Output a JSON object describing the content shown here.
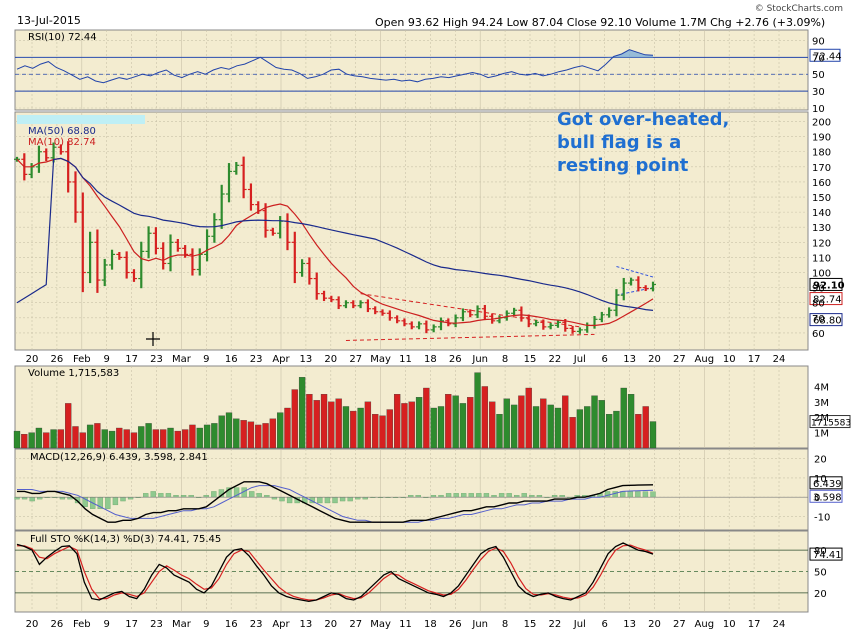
{
  "header": {
    "date": "13-Jul-2015",
    "quote": "Open 93.62  High 94.24  Low 87.04  Close 92.10  Volume 1.7M  Chg +2.76 (+3.09%)",
    "watermark": "© StockCharts.com"
  },
  "annotation": [
    "Got over-heated,",
    "bull flag is a",
    "resting point"
  ],
  "colors": {
    "up": "#2e8b2e",
    "down": "#d62020",
    "ma50": "#1a2a8c",
    "ma10": "#cc2020",
    "panel_bg": "#f3ecd0",
    "rsi": "#2244aa",
    "macd": "#000000",
    "signal": "#5560cc",
    "annotation": "#1f6fd1"
  },
  "x_labels": [
    "20",
    "26",
    "Feb",
    "9",
    "17",
    "23",
    "Mar",
    "9",
    "16",
    "23",
    "Apr",
    "13",
    "20",
    "27",
    "May",
    "11",
    "18",
    "26",
    "Jun",
    "8",
    "15",
    "22",
    "Jul",
    "6",
    "13",
    "20",
    "27",
    "Aug",
    "10",
    "17",
    "24"
  ],
  "chart_data": [
    {
      "type": "line",
      "name": "rsi",
      "title": "RSI(10) 72.44",
      "ticks": [
        "90",
        "70",
        "50",
        "30",
        "10"
      ],
      "current_label": "72.44",
      "ylim": [
        10,
        100
      ],
      "levels": [
        70,
        30
      ],
      "values": [
        56,
        60,
        57,
        62,
        65,
        58,
        54,
        49,
        44,
        47,
        42,
        40,
        43,
        46,
        44,
        47,
        50,
        48,
        52,
        55,
        49,
        46,
        50,
        53,
        50,
        55,
        58,
        56,
        60,
        62,
        66,
        70,
        64,
        58,
        56,
        55,
        51,
        45,
        47,
        50,
        55,
        56,
        50,
        48,
        47,
        45,
        44,
        43,
        44,
        42,
        43,
        41,
        44,
        45,
        47,
        46,
        48,
        50,
        52,
        50,
        46,
        48,
        51,
        53,
        50,
        49,
        51,
        48,
        50,
        53,
        55,
        58,
        60,
        57,
        54,
        62,
        71,
        74,
        79,
        76,
        73,
        72.44
      ]
    },
    {
      "type": "ohlc",
      "name": "price",
      "ticks": [
        "200",
        "190",
        "180",
        "170",
        "160",
        "150",
        "140",
        "130",
        "120",
        "110",
        "100",
        "90",
        "80",
        "70",
        "60"
      ],
      "ylim": [
        50,
        205
      ],
      "legend": [
        "MA(50) 68.80",
        "MA(10) 82.74"
      ],
      "last_labels": [
        "92.10",
        "82.74",
        "68.80"
      ],
      "close": [
        175,
        165,
        170,
        180,
        176,
        183,
        180,
        160,
        140,
        100,
        120,
        95,
        105,
        112,
        110,
        100,
        96,
        114,
        126,
        116,
        106,
        120,
        116,
        112,
        102,
        112,
        124,
        135,
        152,
        167,
        171,
        155,
        145,
        141,
        128,
        126,
        134,
        120,
        100,
        106,
        96,
        86,
        83,
        82,
        78,
        80,
        78,
        80,
        76,
        74,
        73,
        70,
        68,
        66,
        64,
        66,
        62,
        64,
        68,
        66,
        70,
        74,
        72,
        76,
        71,
        68,
        70,
        73,
        75,
        70,
        66,
        67,
        64,
        65,
        67,
        63,
        61,
        62,
        65,
        69,
        72,
        75,
        85,
        93,
        95,
        90,
        89.34,
        92.1
      ]
    },
    {
      "type": "bar",
      "name": "volume",
      "title": "Volume 1,715,583",
      "ticks": [
        "4M",
        "3M",
        "2M",
        "1M"
      ],
      "current_label": "1715583",
      "ylim": [
        0,
        5.2
      ],
      "values": [
        1.1,
        0.9,
        1.0,
        1.3,
        1.0,
        1.2,
        1.2,
        2.9,
        1.4,
        1.0,
        1.5,
        1.6,
        1.2,
        1.1,
        1.3,
        1.2,
        1.0,
        1.4,
        1.6,
        1.2,
        1.2,
        1.3,
        1.1,
        1.2,
        1.5,
        1.3,
        1.5,
        1.6,
        2.1,
        2.3,
        1.9,
        1.8,
        1.7,
        1.5,
        1.6,
        1.9,
        2.3,
        2.6,
        3.8,
        4.6,
        3.5,
        3.1,
        3.5,
        3.0,
        3.2,
        2.7,
        2.4,
        2.6,
        3.0,
        2.2,
        2.1,
        2.5,
        3.5,
        2.9,
        3.0,
        3.3,
        3.9,
        2.6,
        2.7,
        3.5,
        3.4,
        2.9,
        3.3,
        4.9,
        4.0,
        3.0,
        2.2,
        3.2,
        2.8,
        3.4,
        3.9,
        2.7,
        3.2,
        2.8,
        2.6,
        3.4,
        2.0,
        2.5,
        2.7,
        3.4,
        3.1,
        2.2,
        2.4,
        3.9,
        3.5,
        2.2,
        2.7,
        1.72
      ]
    },
    {
      "type": "line",
      "name": "macd",
      "title": "MACD(12,26,9) 6.439, 3.598, 2.841",
      "ticks": [
        "20",
        "10",
        "0",
        "-10"
      ],
      "current_labels": [
        "6.439",
        "3.598"
      ],
      "ylim": [
        -16,
        24
      ],
      "macd": [
        3,
        3,
        2,
        2,
        3,
        3,
        2,
        1,
        -2,
        -6,
        -9,
        -11,
        -13,
        -13,
        -12,
        -12,
        -11,
        -9,
        -8,
        -8,
        -7,
        -7,
        -6,
        -6,
        -6,
        -5,
        -2,
        1,
        4,
        6,
        8,
        8,
        8,
        7,
        5,
        3,
        1,
        -1,
        -3,
        -5,
        -7,
        -9,
        -11,
        -12,
        -13,
        -13,
        -13,
        -13,
        -13,
        -13,
        -13,
        -13,
        -12,
        -12,
        -12,
        -11,
        -10,
        -9,
        -8,
        -7,
        -7,
        -6,
        -5,
        -5,
        -4,
        -3,
        -3,
        -2,
        -2,
        -2,
        -2,
        -1,
        -1,
        -1,
        0,
        0,
        1,
        2,
        4,
        5,
        6,
        6.2,
        6.3,
        6.4,
        6.439
      ],
      "signal": [
        4,
        4,
        4,
        3,
        3,
        3,
        3,
        2,
        1,
        -1,
        -3,
        -5,
        -7,
        -9,
        -10,
        -11,
        -11,
        -11,
        -11,
        -10,
        -9,
        -8,
        -7,
        -7,
        -6,
        -6,
        -5,
        -3,
        -1,
        1,
        3,
        5,
        6,
        6,
        6,
        5,
        4,
        2,
        0,
        -2,
        -4,
        -6,
        -8,
        -10,
        -11,
        -12,
        -12,
        -13,
        -13,
        -13,
        -13,
        -13,
        -13,
        -13,
        -12,
        -12,
        -11,
        -11,
        -10,
        -9,
        -9,
        -8,
        -7,
        -6,
        -6,
        -5,
        -4,
        -4,
        -3,
        -3,
        -2,
        -2,
        -2,
        -1,
        -1,
        -1,
        0,
        0,
        1,
        2,
        3,
        3.2,
        3.4,
        3.5,
        3.598
      ],
      "histogram": [
        -1,
        -1,
        -2,
        -1,
        0,
        0,
        -1,
        -1,
        -3,
        -5,
        -6,
        -6,
        -6,
        -4,
        -2,
        -1,
        0,
        2,
        3,
        2,
        2,
        1,
        1,
        1,
        0,
        1,
        3,
        4,
        5,
        5,
        5,
        3,
        2,
        1,
        -1,
        -2,
        -3,
        -3,
        -3,
        -3,
        -3,
        -3,
        -3,
        -2,
        -2,
        -1,
        -1,
        0,
        0,
        0,
        0,
        0,
        1,
        1,
        0,
        1,
        1,
        2,
        2,
        2,
        2,
        2,
        2,
        1,
        2,
        2,
        1,
        2,
        1,
        1,
        0,
        1,
        1,
        0,
        1,
        1,
        1,
        2,
        3,
        3,
        3,
        3,
        3,
        2.9,
        2.841
      ]
    },
    {
      "type": "line",
      "name": "stochastic",
      "title": "Full STO %K(14,3) %D(3) 74.41, 75.45",
      "ticks": [
        "80",
        "50",
        "20"
      ],
      "current_label": "74.41",
      "ylim": [
        -4,
        104
      ],
      "levels": [
        80,
        50,
        20
      ],
      "k": [
        88,
        85,
        80,
        60,
        70,
        78,
        85,
        86,
        75,
        35,
        12,
        10,
        15,
        20,
        22,
        15,
        12,
        25,
        45,
        60,
        55,
        45,
        40,
        35,
        25,
        20,
        30,
        50,
        70,
        80,
        82,
        72,
        58,
        45,
        30,
        20,
        15,
        12,
        10,
        8,
        10,
        15,
        20,
        18,
        12,
        10,
        15,
        25,
        35,
        45,
        50,
        40,
        35,
        30,
        25,
        20,
        18,
        15,
        20,
        30,
        45,
        60,
        75,
        82,
        85,
        70,
        50,
        30,
        20,
        15,
        18,
        20,
        15,
        12,
        10,
        15,
        20,
        35,
        55,
        75,
        85,
        90,
        85,
        80,
        78,
        74.41
      ],
      "d": [
        86,
        86,
        82,
        70,
        68,
        75,
        80,
        85,
        80,
        50,
        25,
        12,
        12,
        17,
        20,
        18,
        15,
        20,
        35,
        50,
        58,
        52,
        45,
        40,
        32,
        25,
        27,
        40,
        60,
        75,
        80,
        78,
        65,
        52,
        40,
        28,
        20,
        15,
        12,
        10,
        10,
        13,
        17,
        19,
        15,
        12,
        13,
        20,
        30,
        40,
        47,
        45,
        38,
        33,
        28,
        23,
        20,
        17,
        18,
        25,
        38,
        53,
        67,
        78,
        83,
        78,
        62,
        42,
        26,
        18,
        17,
        19,
        17,
        14,
        12,
        13,
        17,
        28,
        45,
        65,
        80,
        86,
        87,
        83,
        80,
        75.45
      ]
    }
  ]
}
